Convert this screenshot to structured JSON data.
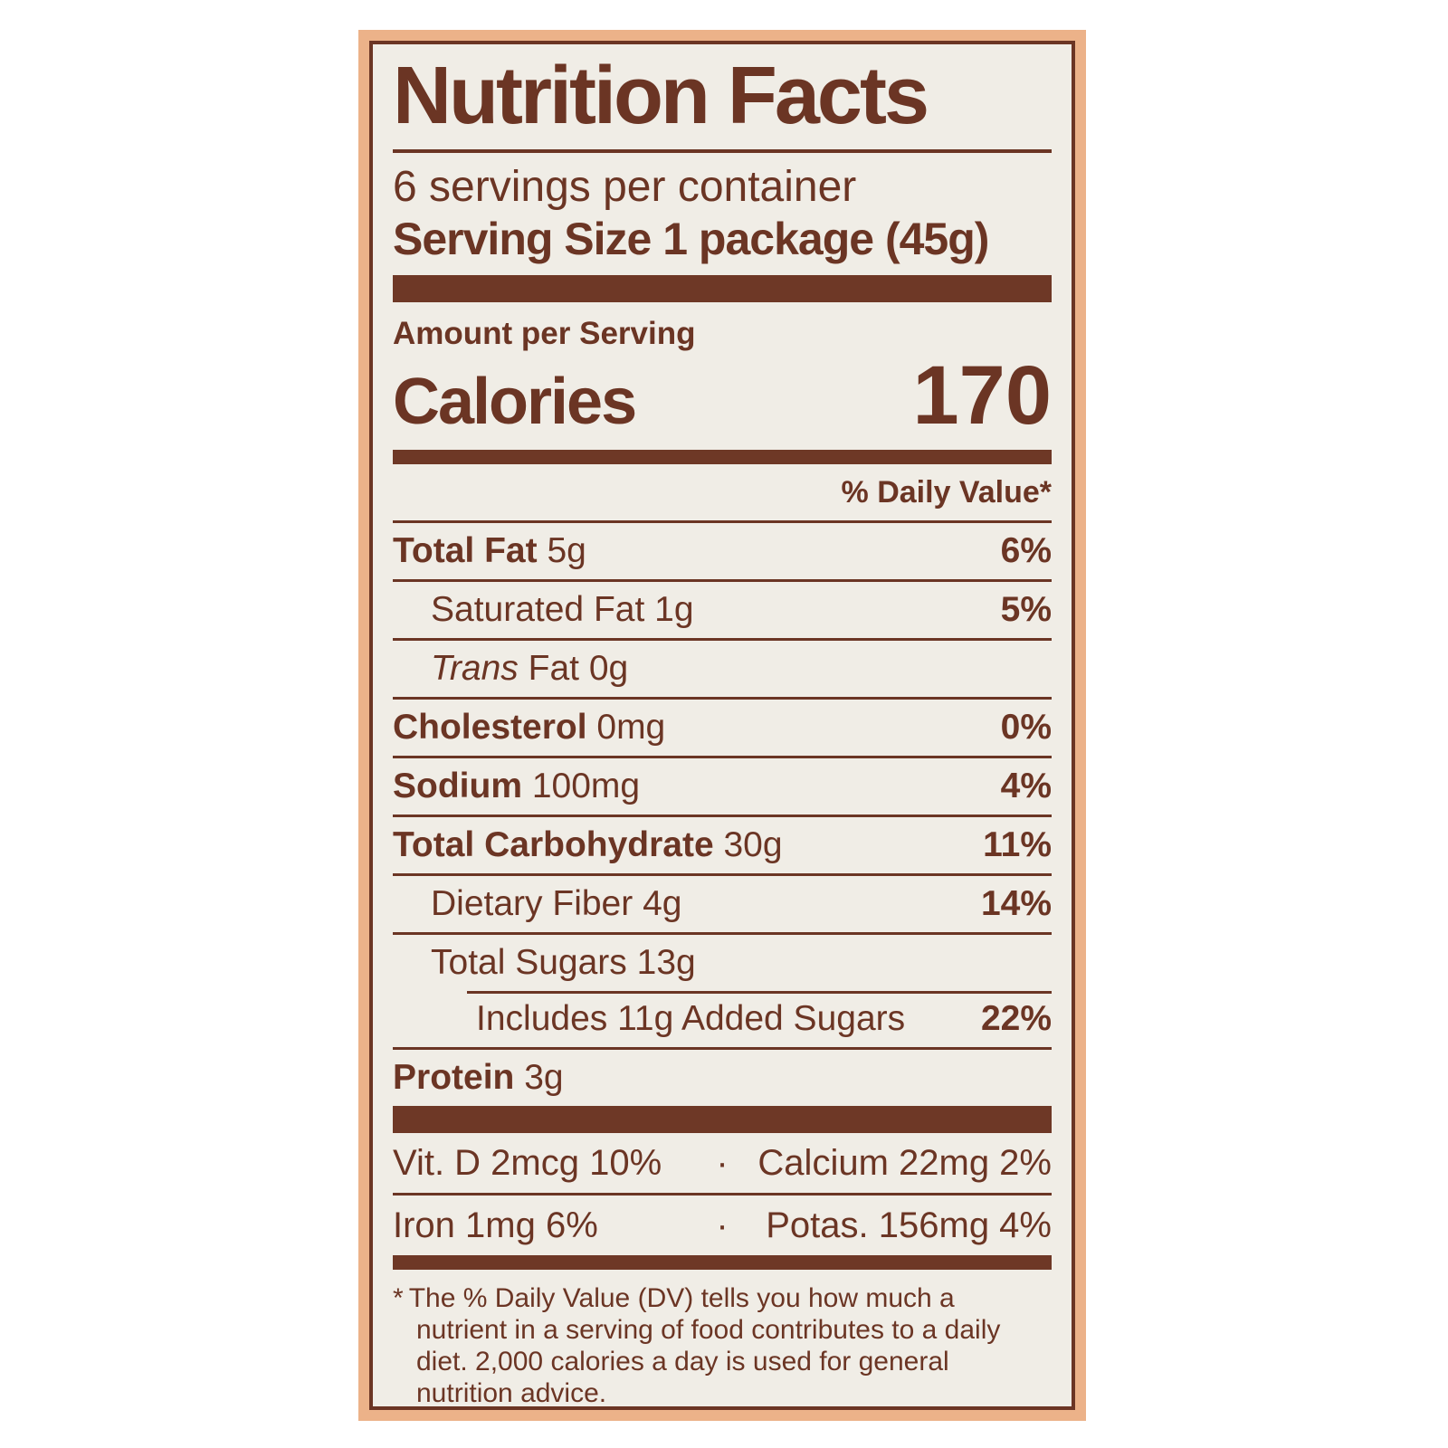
{
  "label": {
    "title": "Nutrition Facts",
    "servings_per_container": "6 servings per container",
    "serving_size": "Serving Size 1 package (45g)",
    "amount_per_serving": "Amount per Serving",
    "calories_label": "Calories",
    "calories_value": "170",
    "daily_value_header": "% Daily Value*",
    "nutrients": [
      {
        "name": "Total Fat",
        "amount": "5g",
        "dv": "6%",
        "bold": true,
        "indent": 0
      },
      {
        "name": "Saturated Fat",
        "amount": "1g",
        "dv": "5%",
        "bold": false,
        "indent": 1
      },
      {
        "name_italic": "Trans",
        "name": "Fat",
        "amount": "0g",
        "dv": "",
        "bold": false,
        "indent": 1
      },
      {
        "name": "Cholesterol",
        "amount": "0mg",
        "dv": "0%",
        "bold": true,
        "indent": 0
      },
      {
        "name": "Sodium",
        "amount": "100mg",
        "dv": "4%",
        "bold": true,
        "indent": 0
      },
      {
        "name": "Total Carbohydrate",
        "amount": "30g",
        "dv": "11%",
        "bold": true,
        "indent": 0
      },
      {
        "name": "Dietary Fiber",
        "amount": "4g",
        "dv": "14%",
        "bold": false,
        "indent": 1
      },
      {
        "name": "Total Sugars",
        "amount": "13g",
        "dv": "",
        "bold": false,
        "indent": 1
      },
      {
        "name": "Includes 11g Added Sugars",
        "amount": "",
        "dv": "22%",
        "bold": false,
        "indent": 2,
        "rule_indent": true
      },
      {
        "name": "Protein",
        "amount": "3g",
        "dv": "",
        "bold": true,
        "indent": 0
      }
    ],
    "micronutrients": [
      {
        "left": "Vit. D 2mcg 10%",
        "separator": "·",
        "right": "Calcium 22mg 2%"
      },
      {
        "left": "Iron 1mg 6%",
        "separator": "·",
        "right": "Potas. 156mg 4%"
      }
    ],
    "footnote_marker": "*",
    "footnote_text": "The % Daily Value (DV) tells you how much a nutrient in a serving of food contributes to a daily diet. 2,000 calories a day is used for general nutrition advice."
  },
  "colors": {
    "text_brown": "#6b3524",
    "bar_brown": "#6e3826",
    "frame_orange": "#ecb289",
    "label_cream": "#f0ede6",
    "page_white": "#ffffff"
  }
}
